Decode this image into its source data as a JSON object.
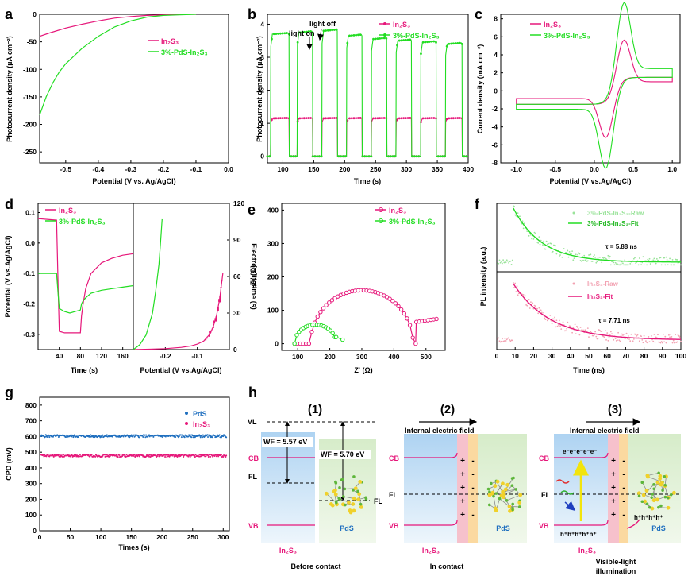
{
  "colors": {
    "pink": "#e6177a",
    "green": "#22dd22",
    "blue": "#1f6fbf",
    "black": "#000000"
  },
  "sub": {
    "in2s3": "2",
    "s3": "3"
  },
  "panel_a": {
    "letter": "a",
    "xlabel": "Potential (V vs. Ag/AgCl)",
    "ylabel": "Photocurrent density (µA cm⁻²)",
    "legend": [
      "In₂S₃",
      "3%-PdS-In₂S₃"
    ]
  },
  "panel_b": {
    "letter": "b",
    "xlabel": "Time (s)",
    "ylabel": "Photocurrent density (µA cm⁻²)",
    "annot_on": "light on",
    "annot_off": "light off",
    "legend": [
      "In₂S₃",
      "3%-PdS-In₂S₃"
    ]
  },
  "panel_c": {
    "letter": "c",
    "xlabel": "Potential (V vs.Ag/AgCl)",
    "ylabel": "Current density (mA cm⁻²)",
    "legend": [
      "In₂S₃",
      "3%-PdS-In₂S₃"
    ]
  },
  "panel_d": {
    "letter": "d",
    "xlabel_left": "Time (s)",
    "xlabel_right": "Potential (V vs.Ag/AgCl)",
    "ylabel_left": "Potential (V vs.Ag/AgCl)",
    "ylabel_right": "Electron lifetime (s)",
    "legend": [
      "In₂S₃",
      "3%-PdS-In₂S₃"
    ]
  },
  "panel_e": {
    "letter": "e",
    "xlabel": "Z' (Ω)",
    "ylabel": "-Z'' (Ω)",
    "legend": [
      "In₂S₃",
      "3%-PdS-In₂S₃"
    ]
  },
  "panel_f": {
    "letter": "f",
    "xlabel": "Time (ns)",
    "ylabel": "PL intensity (a.u.)",
    "legend_top": [
      "3%-PdS-In₂S₃-Raw",
      "3%-PdS-In₂S₃-Fit"
    ],
    "legend_bottom": [
      "In₂S₃-Raw",
      "In₂S₃-Fit"
    ],
    "tau_top": "τ = 5.88 ns",
    "tau_bottom": "τ = 7.71 ns"
  },
  "panel_g": {
    "letter": "g",
    "xlabel": "Times (s)",
    "ylabel": "CPD (mV)",
    "legend": [
      "PdS",
      "In₂S₃"
    ]
  },
  "panel_h": {
    "letter": "h",
    "step1": "(1)",
    "step2": "(2)",
    "step3": "(3)",
    "vl": "VL",
    "cb": "CB",
    "fl": "FL",
    "vb": "VB",
    "pds": "PdS",
    "in2s3": "In₂S₃",
    "wf1": "WF = 5.57 eV",
    "wf2": "WF = 5.70 eV",
    "field": "Internal electric field",
    "cap1": "Before contact",
    "cap2": "In contact",
    "cap3a": "Visible-light",
    "cap3b": "illumination",
    "electrons": "e⁻e⁻e⁻e⁻e⁻",
    "holes": "h⁺h⁺h⁺h⁺h⁺",
    "holes_pds": "h⁺h⁺h⁺h⁺"
  },
  "chart_data": [
    {
      "panel": "a",
      "type": "line",
      "xlabel": "Potential (V vs. Ag/AgCl)",
      "ylabel": "Photocurrent density (µA cm⁻²)",
      "xlim": [
        -0.58,
        0.0
      ],
      "ylim": [
        -270,
        0
      ],
      "xticks": [
        -0.5,
        -0.4,
        -0.3,
        -0.2,
        -0.1,
        0.0
      ],
      "yticks": [
        0,
        -50,
        -100,
        -150,
        -200,
        -250
      ],
      "series": [
        {
          "name": "In₂S₃",
          "color": "#e6177a",
          "x": [
            -0.58,
            -0.55,
            -0.5,
            -0.45,
            -0.4,
            -0.35,
            -0.3,
            -0.25,
            -0.2,
            -0.15,
            -0.1
          ],
          "y": [
            -40,
            -34,
            -25,
            -18,
            -12,
            -7,
            -4,
            -2,
            -1,
            0,
            0
          ]
        },
        {
          "name": "3%-PdS-In₂S₃",
          "color": "#22dd22",
          "x": [
            -0.58,
            -0.56,
            -0.54,
            -0.52,
            -0.5,
            -0.45,
            -0.4,
            -0.35,
            -0.3,
            -0.25,
            -0.2,
            -0.15,
            -0.1
          ],
          "y": [
            -183,
            -150,
            -125,
            -105,
            -90,
            -62,
            -40,
            -23,
            -12,
            -5,
            -2,
            -1,
            0
          ]
        }
      ]
    },
    {
      "panel": "b",
      "type": "line",
      "xlabel": "Time (s)",
      "ylabel": "Photocurrent density (µA cm⁻²)",
      "xlim": [
        75,
        400
      ],
      "ylim": [
        -0.2,
        4.3
      ],
      "xticks": [
        100,
        150,
        200,
        250,
        300,
        350,
        400
      ],
      "yticks": [
        0,
        1,
        2,
        3,
        4
      ],
      "on_times": [
        80,
        123,
        163,
        203,
        243,
        283,
        323,
        363
      ],
      "off_times": [
        110,
        148,
        188,
        228,
        268,
        308,
        348,
        390
      ],
      "series": [
        {
          "name": "In₂S₃",
          "color": "#e6177a",
          "on_level": 1.15,
          "off_level": 0.0
        },
        {
          "name": "3%-PdS-In₂S₃",
          "color": "#22dd22",
          "on_levels": [
            3.7,
            3.75,
            3.8,
            3.65,
            3.55,
            3.5,
            3.45,
            3.4
          ],
          "off_level": 0.0
        }
      ]
    },
    {
      "panel": "c",
      "type": "line",
      "xlabel": "Potential (V vs.Ag/AgCl)",
      "ylabel": "Current density (mA cm⁻²)",
      "xlim": [
        -1.2,
        1.1
      ],
      "ylim": [
        -8,
        8.5
      ],
      "xticks": [
        -1.0,
        -0.5,
        0.0,
        0.5,
        1.0
      ],
      "yticks": [
        8,
        6,
        4,
        2,
        0,
        -2,
        -4,
        -6,
        -8
      ],
      "series": [
        {
          "name": "In₂S₃",
          "color": "#e6177a",
          "anodic_peak": [
            0.38,
            4.8
          ],
          "cathodic_peak": [
            0.15,
            -4.5
          ]
        },
        {
          "name": "3%-PdS-In₂S₃",
          "color": "#22dd22",
          "anodic_peak": [
            0.38,
            7.6
          ],
          "cathodic_peak": [
            0.15,
            -6.8
          ]
        }
      ]
    },
    {
      "panel": "d-left",
      "type": "line",
      "xlabel": "Time (s)",
      "ylabel": "Potential (V vs.Ag/AgCl)",
      "xlim": [
        0,
        180
      ],
      "ylim": [
        -0.35,
        0.13
      ],
      "xticks": [
        40,
        80,
        120,
        160
      ],
      "yticks": [
        0.1,
        0.0,
        -0.1,
        -0.2,
        -0.3
      ],
      "series": [
        {
          "name": "In₂S₃",
          "color": "#e6177a",
          "x": [
            0,
            35,
            38,
            40,
            50,
            60,
            70,
            80,
            82,
            85,
            90,
            100,
            120,
            140,
            160,
            180
          ],
          "y": [
            0.08,
            0.075,
            -0.15,
            -0.29,
            -0.295,
            -0.295,
            -0.295,
            -0.295,
            -0.24,
            -0.2,
            -0.15,
            -0.1,
            -0.065,
            -0.05,
            -0.04,
            -0.035
          ]
        },
        {
          "name": "3%-PdS-In₂S₃",
          "color": "#22dd22",
          "x": [
            0,
            35,
            38,
            40,
            50,
            60,
            70,
            80,
            82,
            85,
            90,
            100,
            120,
            140,
            160,
            180
          ],
          "y": [
            -0.1,
            -0.1,
            -0.17,
            -0.215,
            -0.225,
            -0.23,
            -0.225,
            -0.22,
            -0.2,
            -0.19,
            -0.18,
            -0.165,
            -0.155,
            -0.15,
            -0.145,
            -0.14
          ]
        }
      ]
    },
    {
      "panel": "d-right",
      "type": "line",
      "xlabel": "Potential (V vs.Ag/AgCl)",
      "ylabel": "Electron lifetime (s)",
      "xlim": [
        -0.3,
        0.0
      ],
      "ylim": [
        0,
        120
      ],
      "xticks": [
        -0.2,
        -0.1
      ],
      "yticks": [
        0,
        30,
        60,
        90,
        120
      ],
      "series": [
        {
          "name": "In₂S₃",
          "color": "#e6177a",
          "x": [
            -0.3,
            -0.25,
            -0.2,
            -0.15,
            -0.12,
            -0.1,
            -0.08,
            -0.06,
            -0.05,
            -0.04,
            -0.03,
            -0.02
          ],
          "y": [
            0,
            0.3,
            0.8,
            1.8,
            3,
            4.5,
            7,
            13,
            19,
            28,
            42,
            63
          ]
        },
        {
          "name": "3%-PdS-In₂S₃",
          "color": "#22dd22",
          "x": [
            -0.3,
            -0.28,
            -0.26,
            -0.24,
            -0.23,
            -0.22,
            -0.215,
            -0.21
          ],
          "y": [
            0,
            4,
            12,
            30,
            48,
            70,
            88,
            107
          ]
        }
      ]
    },
    {
      "panel": "e",
      "type": "scatter",
      "xlabel": "Z' (Ω)",
      "ylabel": "-Z'' (Ω)",
      "xlim": [
        50,
        560
      ],
      "ylim": [
        -20,
        420
      ],
      "xticks": [
        100,
        200,
        300,
        400,
        500
      ],
      "yticks": [
        0,
        100,
        200,
        300,
        400
      ],
      "series": [
        {
          "name": "In₂S₃",
          "color": "#e6177a",
          "center": [
            300,
            0
          ],
          "radius": 160,
          "arc_from": 90,
          "arc_to": 470,
          "tail_x": [
            470,
            540
          ],
          "tail_y": [
            65,
            75
          ]
        },
        {
          "name": "3%-PdS-In₂S₃",
          "color": "#22dd22",
          "arc_from": 90,
          "arc_to": 220,
          "peak": 57,
          "tail_x": [
            220,
            240
          ],
          "tail_y": [
            20,
            12
          ]
        }
      ]
    },
    {
      "panel": "f",
      "type": "line",
      "xlabel": "Time (ns)",
      "ylabel": "PL intensity (a.u.)",
      "xlim": [
        0,
        100
      ],
      "xticks": [
        0,
        10,
        20,
        30,
        40,
        50,
        60,
        70,
        80,
        90,
        100
      ],
      "series": [
        {
          "name": "3%-PdS-In₂S₃-Fit",
          "color": "#22dd22",
          "peak_time": 9,
          "tau": 5.88
        },
        {
          "name": "In₂S₃-Fit",
          "color": "#e6177a",
          "peak_time": 9,
          "tau": 7.71
        }
      ]
    },
    {
      "panel": "g",
      "type": "scatter",
      "xlabel": "Times (s)",
      "ylabel": "CPD (mV)",
      "xlim": [
        0,
        310
      ],
      "ylim": [
        0,
        850
      ],
      "xticks": [
        0,
        50,
        100,
        150,
        200,
        250,
        300
      ],
      "yticks": [
        0,
        100,
        200,
        300,
        400,
        500,
        600,
        700,
        800
      ],
      "series": [
        {
          "name": "PdS",
          "color": "#1f6fbf",
          "level": 603
        },
        {
          "name": "In₂S₃",
          "color": "#e6177a",
          "level": 478
        }
      ]
    }
  ]
}
